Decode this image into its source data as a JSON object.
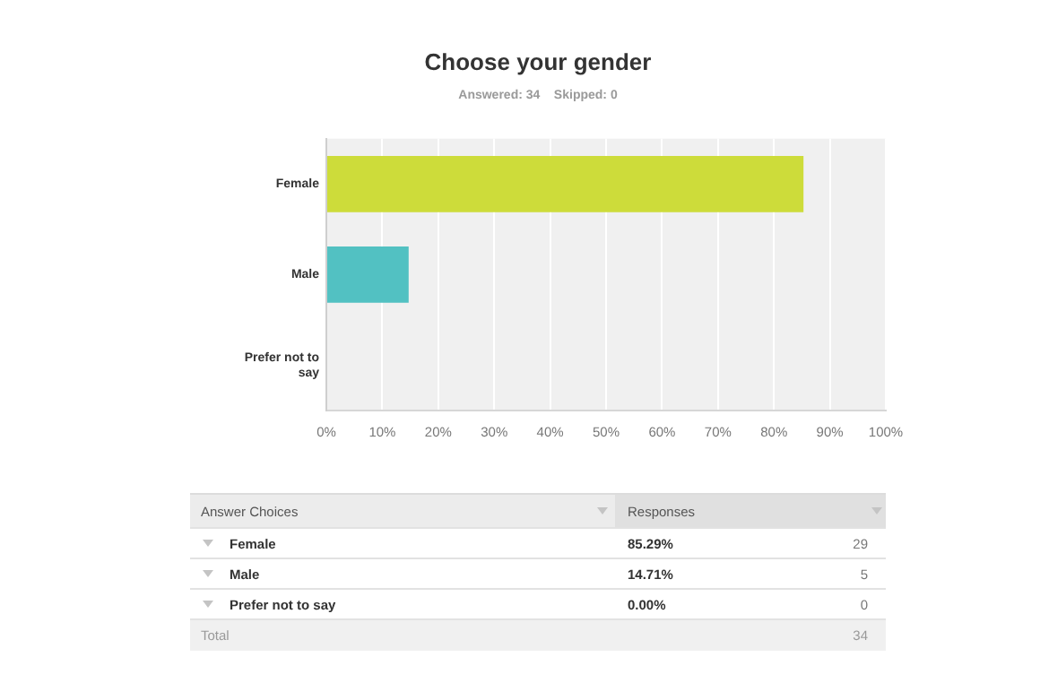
{
  "chart_data": {
    "type": "bar",
    "orientation": "horizontal",
    "title": "Choose your gender",
    "subtitle": "Answered: 34    Skipped: 0",
    "categories": [
      "Female",
      "Male",
      "Prefer not to say"
    ],
    "values": [
      85.29,
      14.71,
      0
    ],
    "colors": [
      "#cddc3a",
      "#52c1c2",
      "#e9a23b"
    ],
    "xlim": [
      0,
      100
    ],
    "xticks": [
      {
        "value": 0,
        "label": "0%"
      },
      {
        "value": 10,
        "label": "10%"
      },
      {
        "value": 20,
        "label": "20%"
      },
      {
        "value": 30,
        "label": "30%"
      },
      {
        "value": 40,
        "label": "40%"
      },
      {
        "value": 50,
        "label": "50%"
      },
      {
        "value": 60,
        "label": "60%"
      },
      {
        "value": 70,
        "label": "70%"
      },
      {
        "value": 80,
        "label": "80%"
      },
      {
        "value": 90,
        "label": "90%"
      },
      {
        "value": 100,
        "label": "100%"
      }
    ],
    "grid": "x",
    "annotations": [
      "Answer Choices",
      "Responses",
      "85.29%",
      "29",
      "14.71%",
      "5",
      "0.00%",
      "0",
      "Total",
      "34"
    ]
  }
}
